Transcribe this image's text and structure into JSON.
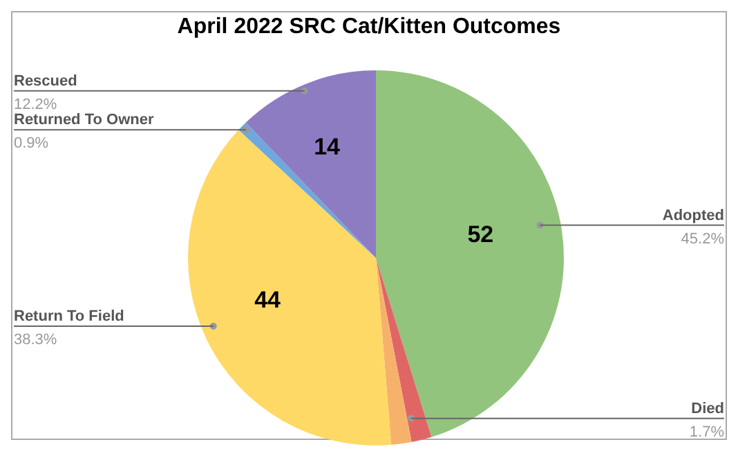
{
  "chart_data": {
    "type": "pie",
    "title": "April 2022 SRC Cat/Kitten Outcomes",
    "categories": [
      "Adopted",
      "Died",
      null,
      "Return To Field",
      "Returned To Owner",
      "Rescued"
    ],
    "values": [
      52,
      2,
      2,
      44,
      1,
      14
    ],
    "colors": [
      "#93c47d",
      "#e06666",
      "#f6b26b",
      "#ffd966",
      "#6fa8dc",
      "#8e7cc3"
    ],
    "value_labels": [
      "52",
      null,
      null,
      "44",
      null,
      "14"
    ],
    "annotations": [
      "45.2%",
      "1.7%",
      "38.3%",
      "0.9%",
      "12.2%"
    ]
  }
}
